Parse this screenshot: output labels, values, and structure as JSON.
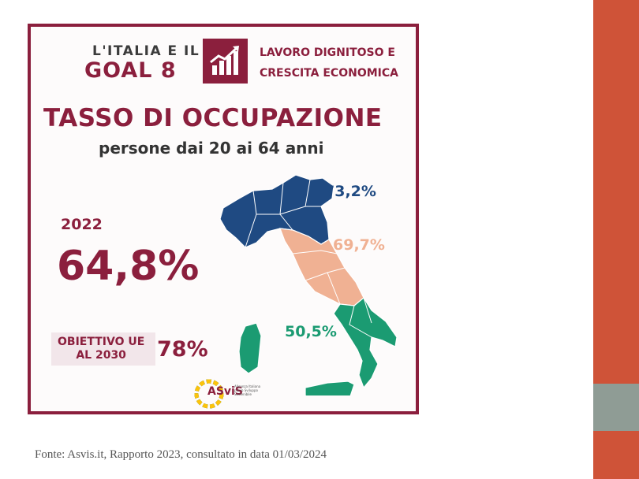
{
  "header": {
    "line1": "L'ITALIA E IL",
    "line2": "GOAL 8",
    "goal_title_1": "LAVORO DIGNITOSO E",
    "goal_title_2": "CRESCITA ECONOMICA",
    "goal_icon": "bar-chart-growth-icon"
  },
  "title": "TASSO DI OCCUPAZIONE",
  "subtitle": "persone dai 20 ai 64 anni",
  "year": "2022",
  "national_rate": "64,8%",
  "target": {
    "label_1": "OBIETTIVO UE",
    "label_2": "AL 2030",
    "value": "78%"
  },
  "regions": {
    "north": {
      "value": "73,2%",
      "color": "#1f4a82"
    },
    "center": {
      "value": "69,7%",
      "color": "#f0b193"
    },
    "south": {
      "value": "50,5%",
      "color": "#1b9b72"
    }
  },
  "logo": {
    "name": "ASviS",
    "subtitle": "Alleanza Italiana per lo Sviluppo Sostenibile"
  },
  "colors": {
    "accent": "#8b1f3d",
    "side_bar": "#cf5338",
    "side_bar_mid": "#8f9c95"
  },
  "source": "Fonte: Asvis.it, Rapporto 2023, consultato in data 01/03/2024"
}
